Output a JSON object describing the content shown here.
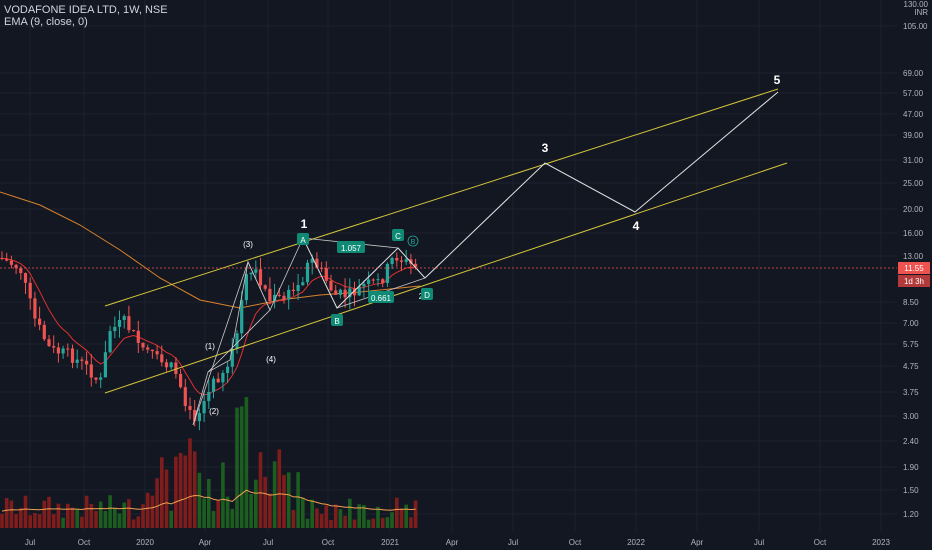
{
  "legend": {
    "symbol_line": "VODAFONE IDEA LTD, 1W, NSE",
    "ema_line": "EMA (9, close, 0)"
  },
  "colors": {
    "background": "#131722",
    "up": "#26a69a",
    "down": "#ef5350",
    "vol_up": "#1b5e20",
    "vol_down": "#7f1d1d",
    "ema": "#e03030",
    "ma_long": "#d9822b",
    "vol_ma": "#f0a050",
    "channel": "#d4c63a",
    "projection": "#e0e0e0",
    "label_green": "#0f8a75",
    "last_price_bg": "#ef5350"
  },
  "y_axis": {
    "unit": "INR",
    "top_label": "130.00",
    "ticks": [
      "105.00",
      "69.00",
      "57.00",
      "47.00",
      "39.00",
      "31.00",
      "25.00",
      "20.00",
      "16.00",
      "13.00",
      "8.50",
      "7.00",
      "5.75",
      "4.75",
      "3.75",
      "3.00",
      "2.40",
      "1.90",
      "1.50",
      "1.20"
    ],
    "last_price": "11.55",
    "countdown": "1d 3h"
  },
  "x_axis": {
    "ticks": [
      "Jul",
      "Oct",
      "2020",
      "Apr",
      "Jul",
      "Oct",
      "2021",
      "Apr",
      "Jul",
      "Oct",
      "2022",
      "Apr",
      "Jul",
      "Oct",
      "2023"
    ]
  },
  "wave_labels": {
    "w1": "1",
    "w3": "3",
    "w4": "4",
    "w5": "5",
    "sub1": "(1)",
    "sub2": "(2)",
    "sub3": "(3)",
    "sub4": "(4)",
    "A": "A",
    "B": "B",
    "C": "C",
    "D": "D",
    "ratio1": "1.057",
    "ratio2": "0.661",
    "wave2_partial": "2",
    "circle_b": "B"
  }
}
